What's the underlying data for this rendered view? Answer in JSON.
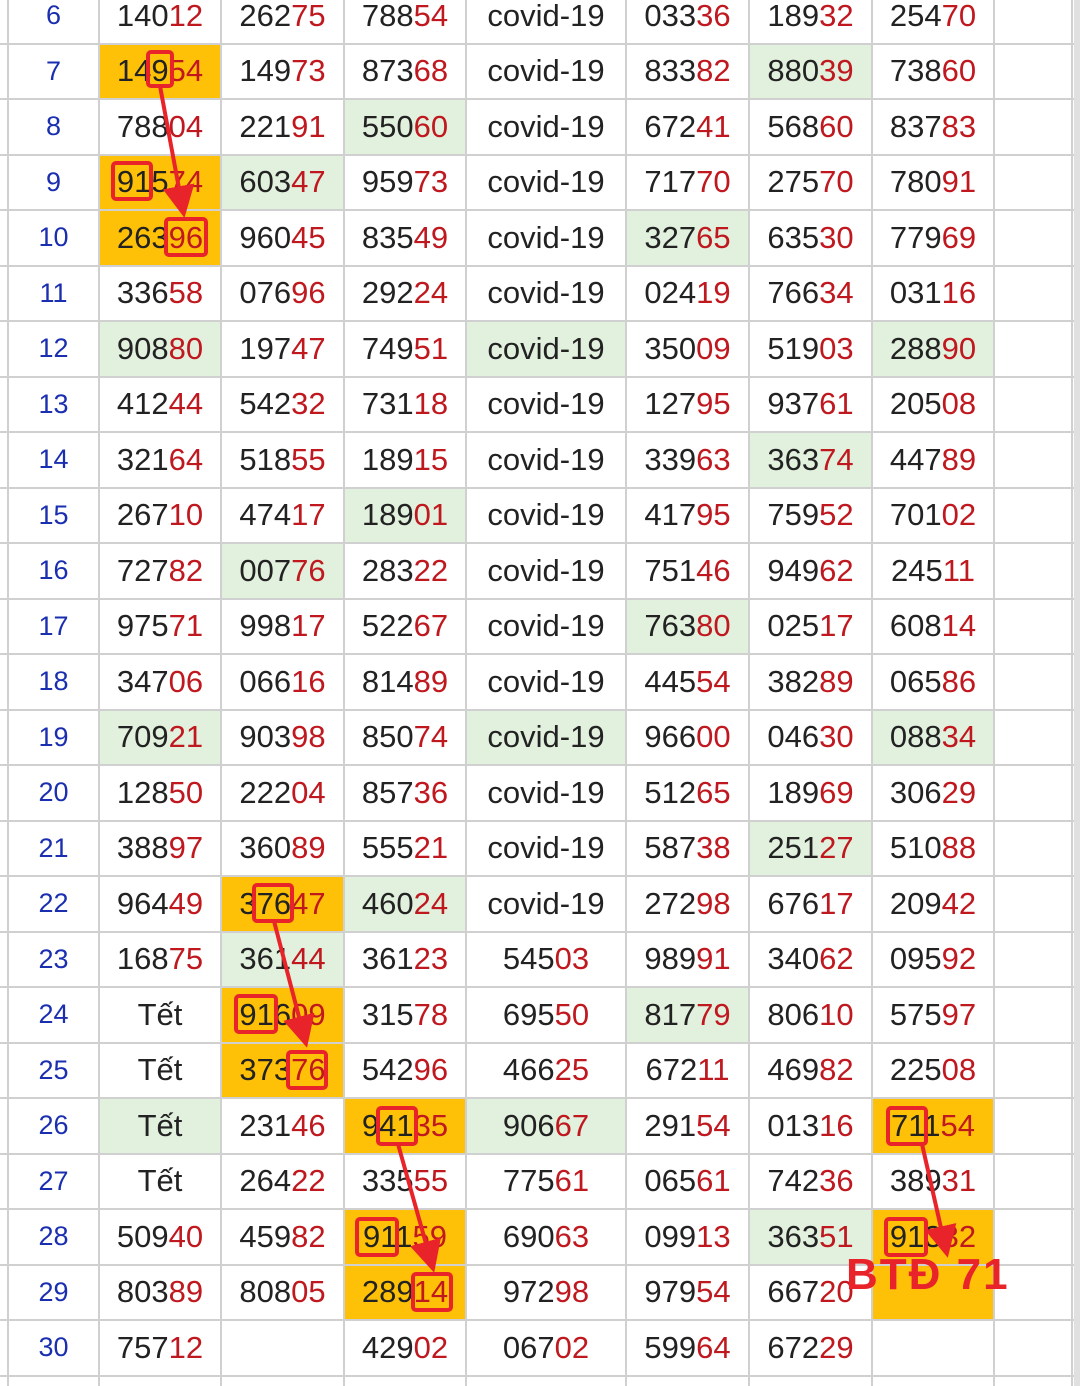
{
  "grid": {
    "rows": [
      {
        "n": "6",
        "cells": [
          "14012",
          "26275",
          "78854",
          "covid-19",
          "03336",
          "18932",
          "25470"
        ]
      },
      {
        "n": "7",
        "cells": [
          "14954",
          "14973",
          "87368",
          "covid-19",
          "83382",
          "88039",
          "73860"
        ]
      },
      {
        "n": "8",
        "cells": [
          "78804",
          "22191",
          "55060",
          "covid-19",
          "67241",
          "56860",
          "83783"
        ]
      },
      {
        "n": "9",
        "cells": [
          "91574",
          "60347",
          "95973",
          "covid-19",
          "71770",
          "27570",
          "78091"
        ]
      },
      {
        "n": "10",
        "cells": [
          "26396",
          "96045",
          "83549",
          "covid-19",
          "32765",
          "63530",
          "77969"
        ]
      },
      {
        "n": "11",
        "cells": [
          "33658",
          "07696",
          "29224",
          "covid-19",
          "02419",
          "76634",
          "03116"
        ]
      },
      {
        "n": "12",
        "cells": [
          "90880",
          "19747",
          "74951",
          "covid-19",
          "35009",
          "51903",
          "28890"
        ]
      },
      {
        "n": "13",
        "cells": [
          "41244",
          "54232",
          "73118",
          "covid-19",
          "12795",
          "93761",
          "20508"
        ]
      },
      {
        "n": "14",
        "cells": [
          "32164",
          "51855",
          "18915",
          "covid-19",
          "33963",
          "36374",
          "44789"
        ]
      },
      {
        "n": "15",
        "cells": [
          "26710",
          "47417",
          "18901",
          "covid-19",
          "41795",
          "75952",
          "70102"
        ]
      },
      {
        "n": "16",
        "cells": [
          "72782",
          "00776",
          "28322",
          "covid-19",
          "75146",
          "94962",
          "24511"
        ]
      },
      {
        "n": "17",
        "cells": [
          "97571",
          "99817",
          "52267",
          "covid-19",
          "76380",
          "02517",
          "60814"
        ]
      },
      {
        "n": "18",
        "cells": [
          "34706",
          "06616",
          "81489",
          "covid-19",
          "44554",
          "38289",
          "06586"
        ]
      },
      {
        "n": "19",
        "cells": [
          "70921",
          "90398",
          "85074",
          "covid-19",
          "96600",
          "04630",
          "08834"
        ]
      },
      {
        "n": "20",
        "cells": [
          "12850",
          "22204",
          "85736",
          "covid-19",
          "51265",
          "18969",
          "30629"
        ]
      },
      {
        "n": "21",
        "cells": [
          "38897",
          "36089",
          "55521",
          "covid-19",
          "58738",
          "25127",
          "51088"
        ]
      },
      {
        "n": "22",
        "cells": [
          "96449",
          "37647",
          "46024",
          "covid-19",
          "27298",
          "67617",
          "20942"
        ]
      },
      {
        "n": "23",
        "cells": [
          "16875",
          "36144",
          "36123",
          "54503",
          "98991",
          "34062",
          "09592"
        ]
      },
      {
        "n": "24",
        "cells": [
          "Tết",
          "91609",
          "31578",
          "69550",
          "81779",
          "80610",
          "57597"
        ]
      },
      {
        "n": "25",
        "cells": [
          "Tết",
          "37376",
          "54296",
          "46625",
          "67211",
          "46982",
          "22508"
        ]
      },
      {
        "n": "26",
        "cells": [
          "Tết",
          "23146",
          "94135",
          "90667",
          "29154",
          "01316",
          "71154"
        ]
      },
      {
        "n": "27",
        "cells": [
          "Tết",
          "26422",
          "33555",
          "77561",
          "06561",
          "74236",
          "38931"
        ]
      },
      {
        "n": "28",
        "cells": [
          "50940",
          "45982",
          "91159",
          "69063",
          "09913",
          "36351",
          "91332"
        ]
      },
      {
        "n": "29",
        "cells": [
          "80389",
          "80805",
          "28914",
          "97298",
          "97954",
          "66720",
          ""
        ]
      },
      {
        "n": "30",
        "cells": [
          "75712",
          "",
          "42902",
          "06702",
          "59964",
          "67229",
          ""
        ]
      }
    ],
    "highlights": {
      "yellow": [
        "7-0",
        "9-0",
        "10-0",
        "22-1",
        "24-1",
        "25-1",
        "26-2",
        "26-6",
        "28-2",
        "28-6",
        "29-2",
        "29-6"
      ],
      "green": [
        "7-5",
        "8-2",
        "9-1",
        "10-4",
        "12-0",
        "12-3",
        "12-6",
        "14-5",
        "15-2",
        "16-1",
        "17-4",
        "19-0",
        "19-3",
        "19-6",
        "21-5",
        "22-2",
        "23-1",
        "24-4",
        "26-0",
        "26-3",
        "28-5"
      ]
    },
    "colors": {
      "yellow": "#ffc107",
      "green": "#e2f1de",
      "tail_red": "#c0181f",
      "row_number_blue": "#1a2fb0",
      "annotation_red": "#e8232a"
    }
  },
  "annotation": {
    "label": "BTĐ 71"
  }
}
